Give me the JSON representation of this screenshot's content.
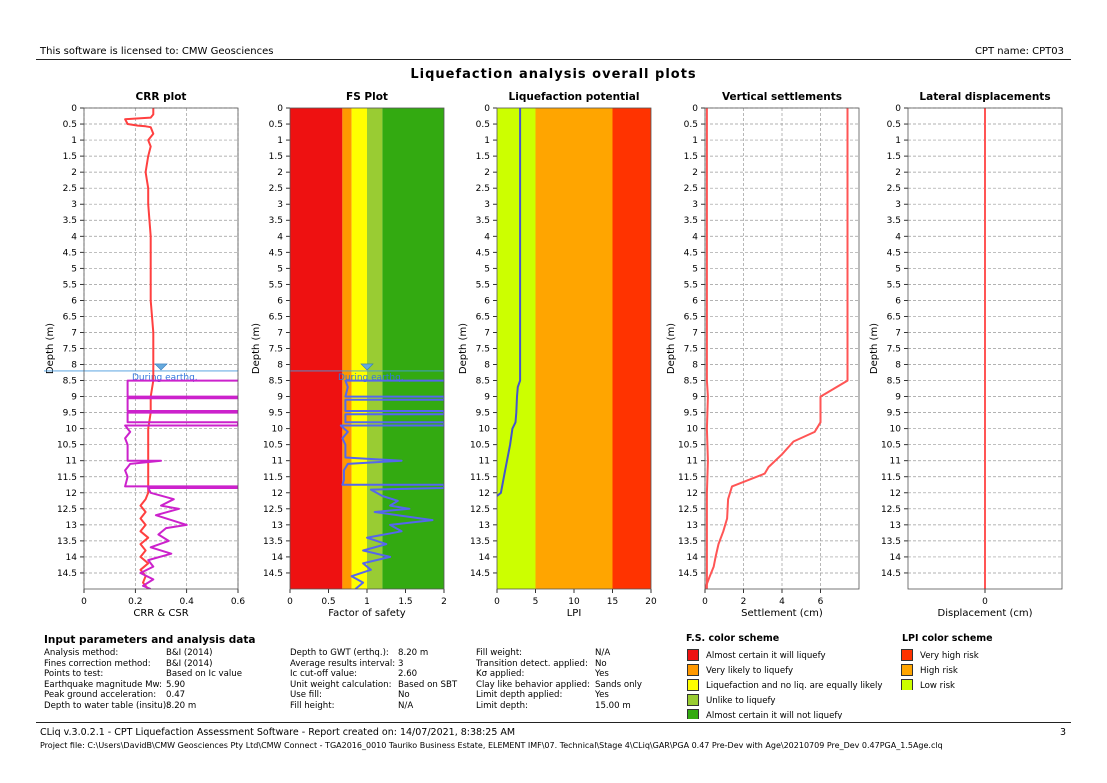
{
  "header": {
    "license": "This software is licensed to: CMW Geosciences",
    "cpt_name": "CPT name: CPT03",
    "title": "Liquefaction analysis overall plots"
  },
  "chart_data": [
    {
      "type": "line",
      "title": "CRR plot",
      "xlabel": "CRR & CSR",
      "ylabel": "Depth (m)",
      "xlim": [
        0,
        0.6
      ],
      "xticks": [
        "0",
        "0.2",
        "0.4",
        "0.6"
      ],
      "ylim": [
        0,
        15
      ],
      "yticks": [
        "0",
        "0.5",
        "1",
        "1.5",
        "2",
        "2.5",
        "3",
        "3.5",
        "4",
        "4.5",
        "5",
        "5.5",
        "6",
        "6.5",
        "7",
        "7.5",
        "8",
        "8.5",
        "9",
        "9.5",
        "10",
        "10.5",
        "11",
        "11.5",
        "12",
        "12.5",
        "13",
        "13.5",
        "14",
        "14.5"
      ],
      "gwt_label": "During earthq.",
      "gwt_depth": 8.2,
      "series": [
        {
          "color": "#ff4040",
          "points": [
            [
              0.27,
              0
            ],
            [
              0.27,
              0.2
            ],
            [
              0.26,
              0.3
            ],
            [
              0.22,
              0.32
            ],
            [
              0.16,
              0.35
            ],
            [
              0.17,
              0.5
            ],
            [
              0.21,
              0.55
            ],
            [
              0.24,
              0.57
            ],
            [
              0.26,
              0.6
            ],
            [
              0.27,
              0.8
            ],
            [
              0.25,
              1
            ],
            [
              0.26,
              1.2
            ],
            [
              0.25,
              1.5
            ],
            [
              0.24,
              2
            ],
            [
              0.25,
              2.5
            ],
            [
              0.25,
              3
            ],
            [
              0.26,
              4
            ],
            [
              0.26,
              5
            ],
            [
              0.26,
              6
            ],
            [
              0.27,
              7
            ],
            [
              0.27,
              8
            ],
            [
              0.27,
              8.5
            ],
            [
              0.26,
              9
            ],
            [
              0.26,
              9.5
            ],
            [
              0.25,
              10
            ],
            [
              0.25,
              10.5
            ],
            [
              0.25,
              11
            ],
            [
              0.25,
              11.5
            ],
            [
              0.25,
              12
            ],
            [
              0.24,
              12.2
            ],
            [
              0.22,
              12.4
            ],
            [
              0.24,
              12.6
            ],
            [
              0.22,
              12.8
            ],
            [
              0.24,
              13
            ],
            [
              0.22,
              13.2
            ],
            [
              0.25,
              13.4
            ],
            [
              0.22,
              13.6
            ],
            [
              0.24,
              13.8
            ],
            [
              0.22,
              14
            ],
            [
              0.25,
              14.2
            ],
            [
              0.22,
              14.4
            ],
            [
              0.24,
              14.6
            ],
            [
              0.23,
              14.8
            ],
            [
              0.25,
              15
            ]
          ]
        },
        {
          "color": "#cc22cc",
          "points": [
            [
              0.6,
              8.5
            ],
            [
              0.17,
              8.5
            ],
            [
              0.17,
              8.6
            ],
            [
              0.17,
              9
            ],
            [
              0.6,
              9
            ],
            [
              0.6,
              9.05
            ],
            [
              0.17,
              9.05
            ],
            [
              0.17,
              9.45
            ],
            [
              0.6,
              9.45
            ],
            [
              0.6,
              9.5
            ],
            [
              0.17,
              9.5
            ],
            [
              0.17,
              9.8
            ],
            [
              0.6,
              9.8
            ],
            [
              0.6,
              9.9
            ],
            [
              0.16,
              9.9
            ],
            [
              0.18,
              10.1
            ],
            [
              0.16,
              10.3
            ],
            [
              0.17,
              10.5
            ],
            [
              0.17,
              11
            ],
            [
              0.3,
              11
            ],
            [
              0.18,
              11.1
            ],
            [
              0.16,
              11.3
            ],
            [
              0.17,
              11.5
            ],
            [
              0.16,
              11.8
            ],
            [
              0.6,
              11.8
            ],
            [
              0.6,
              11.85
            ],
            [
              0.25,
              11.85
            ],
            [
              0.26,
              12
            ],
            [
              0.35,
              12.2
            ],
            [
              0.3,
              12.4
            ],
            [
              0.37,
              12.5
            ],
            [
              0.28,
              12.7
            ],
            [
              0.36,
              12.9
            ],
            [
              0.4,
              13
            ],
            [
              0.32,
              13.1
            ],
            [
              0.29,
              13.3
            ],
            [
              0.33,
              13.5
            ],
            [
              0.26,
              13.7
            ],
            [
              0.34,
              13.9
            ],
            [
              0.25,
              14.1
            ],
            [
              0.27,
              14.3
            ],
            [
              0.22,
              14.5
            ],
            [
              0.27,
              14.7
            ],
            [
              0.23,
              14.9
            ],
            [
              0.26,
              15
            ]
          ]
        }
      ]
    },
    {
      "type": "line",
      "title": "FS Plot",
      "xlabel": "Factor of safety",
      "ylabel": "Depth (m)",
      "xlim": [
        0,
        2
      ],
      "xticks": [
        "0",
        "0.5",
        "1",
        "1.5",
        "2"
      ],
      "ylim": [
        0,
        15
      ],
      "yticks": [
        "0",
        "0.5",
        "1",
        "1.5",
        "2",
        "2.5",
        "3",
        "3.5",
        "4",
        "4.5",
        "5",
        "5.5",
        "6",
        "6.5",
        "7",
        "7.5",
        "8",
        "8.5",
        "9",
        "9.5",
        "10",
        "10.5",
        "11",
        "11.5",
        "12",
        "12.5",
        "13",
        "13.5",
        "14",
        "14.5"
      ],
      "gwt_label": "During earthq.",
      "gwt_depth": 8.2,
      "bands": [
        {
          "from": 0,
          "to": 0.68,
          "color": "#ee1111"
        },
        {
          "from": 0.68,
          "to": 0.8,
          "color": "#ff9900"
        },
        {
          "from": 0.8,
          "to": 1.0,
          "color": "#ffff00"
        },
        {
          "from": 1.0,
          "to": 1.2,
          "color": "#99cc33"
        },
        {
          "from": 1.2,
          "to": 2.0,
          "color": "#33aa11"
        }
      ],
      "series": [
        {
          "color": "#5566ee",
          "points": [
            [
              2,
              8.5
            ],
            [
              0.72,
              8.5
            ],
            [
              0.75,
              8.7
            ],
            [
              0.72,
              9
            ],
            [
              2,
              9
            ],
            [
              2,
              9.1
            ],
            [
              0.72,
              9.1
            ],
            [
              0.72,
              9.45
            ],
            [
              2,
              9.45
            ],
            [
              2,
              9.55
            ],
            [
              0.72,
              9.55
            ],
            [
              0.72,
              9.8
            ],
            [
              2,
              9.8
            ],
            [
              2,
              9.9
            ],
            [
              0.66,
              9.9
            ],
            [
              0.75,
              10.1
            ],
            [
              0.68,
              10.3
            ],
            [
              0.72,
              10.5
            ],
            [
              0.72,
              10.9
            ],
            [
              1.45,
              11
            ],
            [
              0.75,
              11.1
            ],
            [
              0.7,
              11.3
            ],
            [
              0.7,
              11.6
            ],
            [
              0.68,
              11.75
            ],
            [
              2,
              11.75
            ],
            [
              2,
              11.85
            ],
            [
              1.05,
              11.9
            ],
            [
              1.2,
              12.1
            ],
            [
              1.4,
              12.25
            ],
            [
              1.3,
              12.4
            ],
            [
              1.55,
              12.5
            ],
            [
              1.1,
              12.6
            ],
            [
              1.85,
              12.85
            ],
            [
              1.3,
              13
            ],
            [
              1.45,
              13.2
            ],
            [
              1.0,
              13.4
            ],
            [
              1.25,
              13.6
            ],
            [
              0.95,
              13.8
            ],
            [
              1.3,
              14
            ],
            [
              0.95,
              14.2
            ],
            [
              1.05,
              14.4
            ],
            [
              0.8,
              14.6
            ],
            [
              0.95,
              14.8
            ],
            [
              0.85,
              15
            ]
          ]
        }
      ]
    },
    {
      "type": "line",
      "title": "Liquefaction potential",
      "xlabel": "LPI",
      "ylabel": "Depth (m)",
      "xlim": [
        0,
        20
      ],
      "xticks": [
        "0",
        "5",
        "10",
        "15",
        "20"
      ],
      "ylim": [
        0,
        15
      ],
      "yticks": [
        "0",
        "0.5",
        "1",
        "1.5",
        "2",
        "2.5",
        "3",
        "3.5",
        "4",
        "4.5",
        "5",
        "5.5",
        "6",
        "6.5",
        "7",
        "7.5",
        "8",
        "8.5",
        "9",
        "9.5",
        "10",
        "10.5",
        "11",
        "11.5",
        "12",
        "12.5",
        "13",
        "13.5",
        "14",
        "14.5"
      ],
      "bands": [
        {
          "from": 0,
          "to": 5,
          "color": "#ccff00"
        },
        {
          "from": 5,
          "to": 15,
          "color": "#ffa500"
        },
        {
          "from": 15,
          "to": 20,
          "color": "#ff3300"
        }
      ],
      "series": [
        {
          "color": "#4455cc",
          "points": [
            [
              3.0,
              0
            ],
            [
              3.0,
              8.5
            ],
            [
              2.7,
              8.7
            ],
            [
              2.6,
              9
            ],
            [
              2.5,
              9.5
            ],
            [
              2.4,
              9.8
            ],
            [
              2.0,
              10
            ],
            [
              1.7,
              10.5
            ],
            [
              1.3,
              11
            ],
            [
              0.9,
              11.5
            ],
            [
              0.5,
              12
            ],
            [
              0,
              12.1
            ]
          ]
        }
      ]
    },
    {
      "type": "line",
      "title": "Vertical settlements",
      "xlabel": "Settlement (cm)",
      "ylabel": "Depth (m)",
      "xlim": [
        0,
        8
      ],
      "xticks": [
        "0",
        "2",
        "4",
        "6"
      ],
      "ylim": [
        0,
        15
      ],
      "yticks": [
        "0",
        "0.5",
        "1",
        "1.5",
        "2",
        "2.5",
        "3",
        "3.5",
        "4",
        "4.5",
        "5",
        "5.5",
        "6",
        "6.5",
        "7",
        "7.5",
        "8",
        "8.5",
        "9",
        "9.5",
        "10",
        "10.5",
        "11",
        "11.5",
        "12",
        "12.5",
        "13",
        "13.5",
        "14",
        "14.5"
      ],
      "series": [
        {
          "color": "#ff5555",
          "points": [
            [
              7.4,
              0
            ],
            [
              7.4,
              8.5
            ],
            [
              6.0,
              9
            ],
            [
              6.0,
              9.8
            ],
            [
              5.7,
              10.1
            ],
            [
              4.6,
              10.4
            ],
            [
              4.0,
              10.8
            ],
            [
              3.3,
              11.2
            ],
            [
              3.1,
              11.4
            ],
            [
              1.4,
              11.8
            ],
            [
              1.2,
              12.2
            ],
            [
              1.15,
              12.8
            ],
            [
              0.95,
              13.2
            ],
            [
              0.7,
              13.6
            ],
            [
              0.55,
              14
            ],
            [
              0.45,
              14.3
            ],
            [
              0.25,
              14.6
            ],
            [
              0.0,
              15
            ]
          ]
        },
        {
          "color": "#ff5555",
          "points": [
            [
              0.1,
              0
            ],
            [
              0.1,
              8.5
            ],
            [
              0.15,
              9
            ],
            [
              0.1,
              10
            ],
            [
              0.15,
              11
            ],
            [
              0.1,
              12
            ],
            [
              0.1,
              15
            ]
          ]
        }
      ]
    },
    {
      "type": "line",
      "title": "Lateral displacements",
      "xlabel": "Displacement (cm)",
      "ylabel": "Depth (m)",
      "xlim": [
        -1,
        1
      ],
      "xticks": [
        "0"
      ],
      "ylim": [
        0,
        15
      ],
      "yticks": [
        "0",
        "0.5",
        "1",
        "1.5",
        "2",
        "2.5",
        "3",
        "3.5",
        "4",
        "4.5",
        "5",
        "5.5",
        "6",
        "6.5",
        "7",
        "7.5",
        "8",
        "8.5",
        "9",
        "9.5",
        "10",
        "10.5",
        "11",
        "11.5",
        "12",
        "12.5",
        "13",
        "13.5",
        "14",
        "14.5"
      ],
      "series": [
        {
          "color": "#ff5555",
          "points": [
            [
              0,
              0
            ],
            [
              0,
              15
            ]
          ]
        }
      ]
    }
  ],
  "params": {
    "title": "Input parameters and analysis data",
    "col1": [
      {
        "label": "Analysis method:",
        "value": "B&I (2014)"
      },
      {
        "label": "Fines correction method:",
        "value": "B&I (2014)"
      },
      {
        "label": "Points to test:",
        "value": "Based on Ic value"
      },
      {
        "label": "Earthquake magnitude Mw:",
        "value": "5.90"
      },
      {
        "label": "Peak ground acceleration:",
        "value": "0.47"
      },
      {
        "label": "Depth to water table (insitu):",
        "value": "8.20 m"
      }
    ],
    "col2": [
      {
        "label": "Depth to GWT (erthq.):",
        "value": "8.20 m"
      },
      {
        "label": "Average results interval:",
        "value": "3"
      },
      {
        "label": "Ic cut-off value:",
        "value": "2.60"
      },
      {
        "label": "Unit weight calculation:",
        "value": "Based on SBT"
      },
      {
        "label": "Use fill:",
        "value": "No"
      },
      {
        "label": "Fill height:",
        "value": "N/A"
      }
    ],
    "col3": [
      {
        "label": "Fill weight:",
        "value": "N/A"
      },
      {
        "label": "Transition detect. applied:",
        "value": "No"
      },
      {
        "label": "Kσ applied:",
        "value": "Yes"
      },
      {
        "label": "Clay like behavior applied:",
        "value": "Sands only"
      },
      {
        "label": "Limit depth applied:",
        "value": "Yes"
      },
      {
        "label": "Limit depth:",
        "value": "15.00 m"
      }
    ]
  },
  "fs_legend": {
    "title": "F.S. color scheme",
    "items": [
      {
        "color": "#ee1111",
        "label": "Almost certain it will liquefy"
      },
      {
        "color": "#ff9900",
        "label": "Very likely to liquefy"
      },
      {
        "color": "#ffff00",
        "label": "Liquefaction and no liq. are equally likely"
      },
      {
        "color": "#99cc33",
        "label": "Unlike to liquefy"
      },
      {
        "color": "#33aa11",
        "label": "Almost certain it will not liquefy"
      }
    ]
  },
  "lpi_legend": {
    "title": "LPI color scheme",
    "items": [
      {
        "color": "#ff3300",
        "label": "Very high risk"
      },
      {
        "color": "#ffa500",
        "label": "High risk"
      },
      {
        "color": "#ccff00",
        "label": "Low risk"
      }
    ]
  },
  "footer": {
    "software": "CLiq v.3.0.2.1 - CPT Liquefaction Assessment Software - Report created on: 14/07/2021, 8:38:25 AM",
    "page": "3",
    "project_file": "Project file: C:\\Users\\DavidB\\CMW Geosciences Pty Ltd\\CMW Connect - TGA2016_0010 Tauriko Business Estate, ELEMENT IMF\\07. Technical\\Stage 4\\CLiq\\GAR\\PGA 0.47 Pre-Dev with Age\\20210709 Pre_Dev 0.47PGA_1.5Age.clq"
  }
}
